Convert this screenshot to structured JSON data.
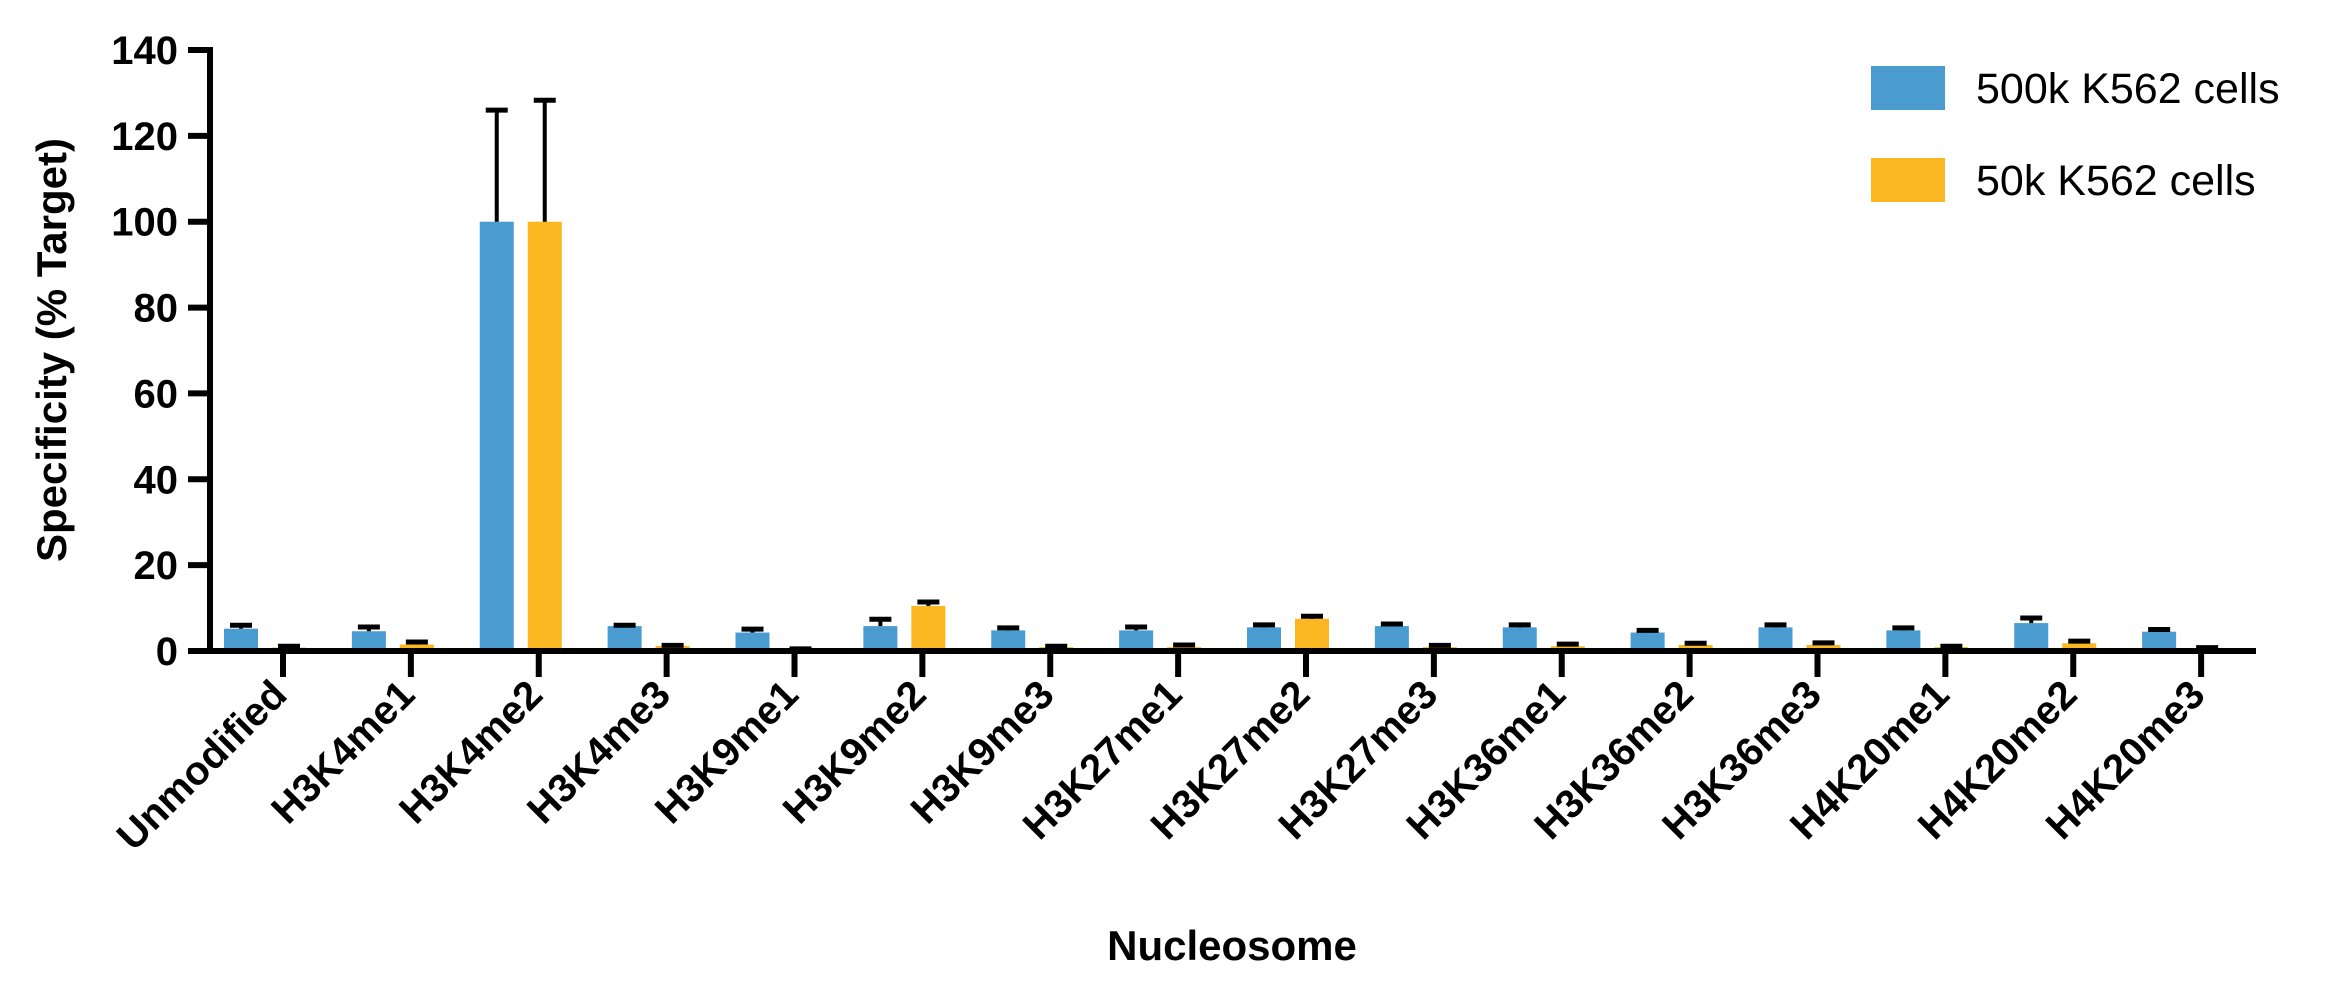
{
  "chart_data": {
    "type": "bar",
    "title": "",
    "xlabel": "Nucleosome",
    "ylabel": "Specificity (% Target)",
    "ylim": [
      0,
      140
    ],
    "yticks": [
      0,
      20,
      40,
      60,
      80,
      100,
      120,
      140
    ],
    "categories": [
      "Unmodified",
      "H3K4me1",
      "H3K4me2",
      "H3K4me3",
      "H3K9me1",
      "H3K9me2",
      "H3K9me3",
      "H3K27me1",
      "H3K27me2",
      "H3K27me3",
      "H3K36me1",
      "H3K36me2",
      "H3K36me3",
      "H4K20me1",
      "H4K20me2",
      "H4K20me3"
    ],
    "series": [
      {
        "name": "500k K562 cells",
        "color": "#4A9BD0",
        "values": [
          5.2,
          4.6,
          100,
          5.8,
          4.3,
          5.8,
          4.8,
          4.8,
          5.5,
          5.8,
          5.5,
          4.3,
          5.5,
          4.8,
          6.5,
          4.5
        ],
        "errors": [
          0.8,
          1.0,
          26.0,
          0.2,
          0.8,
          1.6,
          0.6,
          0.8,
          0.6,
          0.5,
          0.6,
          0.5,
          0.6,
          0.6,
          1.2,
          0.5
        ]
      },
      {
        "name": "50k K562 cells",
        "color": "#FBB721",
        "values": [
          0.8,
          1.5,
          100,
          1.2,
          0.4,
          10.5,
          0.9,
          0.9,
          7.5,
          0.9,
          1.1,
          1.4,
          1.4,
          0.9,
          1.8,
          0.6
        ],
        "errors": [
          0.3,
          0.6,
          28.3,
          0.1,
          0.1,
          0.9,
          0.2,
          0.5,
          0.6,
          0.4,
          0.5,
          0.4,
          0.5,
          0.2,
          0.5,
          0.2
        ]
      }
    ],
    "grid": false,
    "legend_position": "top-right"
  }
}
